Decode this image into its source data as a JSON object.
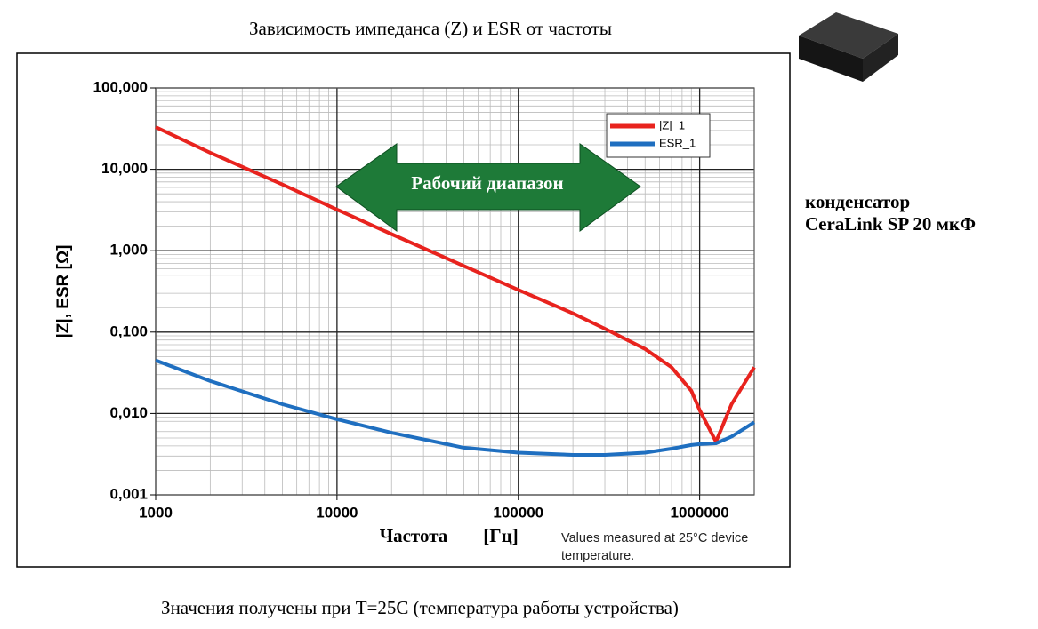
{
  "chart_data": {
    "type": "line",
    "title": "Зависимость импеданса (Z) и ESR от частоты",
    "ylabel": "|Z|, ESR [Ω]",
    "xlabel": "Частота",
    "xlabel_unit": "[Гц]",
    "note": "Values measured at 25°C device temperature.",
    "annotation": "Рабочий диапазон",
    "side_label": [
      "конденсатор",
      "CeraLink SP 20 мкФ"
    ],
    "footer": "Значения получены при Т=25С (температура работы устройства)",
    "xscale": "log",
    "yscale": "log",
    "grid": true,
    "legend": "top-right",
    "xlim": [
      1000,
      2000000
    ],
    "xticks": [
      1000,
      10000,
      100000,
      1000000
    ],
    "ylim": [
      0.001,
      100
    ],
    "yticks": [
      {
        "value": 0.001,
        "label": "0,001"
      },
      {
        "value": 0.01,
        "label": "0,010"
      },
      {
        "value": 0.1,
        "label": "0,100"
      },
      {
        "value": 1,
        "label": "1,000"
      },
      {
        "value": 10,
        "label": "10,000"
      },
      {
        "value": 100,
        "label": "100,000"
      }
    ],
    "x": [
      1000,
      2000,
      5000,
      10000,
      20000,
      50000,
      100000,
      200000,
      300000,
      500000,
      700000,
      900000,
      1000000,
      1230000,
      1500000,
      2000000
    ],
    "series": [
      {
        "name": "|Z|_1",
        "color": "#e8231e",
        "values": [
          33,
          16,
          6.5,
          3.2,
          1.6,
          0.65,
          0.33,
          0.17,
          0.11,
          0.062,
          0.037,
          0.019,
          0.011,
          0.0045,
          0.013,
          0.037
        ]
      },
      {
        "name": "ESR_1",
        "color": "#1f6fc0",
        "values": [
          0.045,
          0.025,
          0.013,
          0.0085,
          0.0058,
          0.0038,
          0.0033,
          0.0031,
          0.0031,
          0.0033,
          0.0037,
          0.0041,
          0.0042,
          0.0043,
          0.0052,
          0.0078
        ]
      }
    ]
  }
}
